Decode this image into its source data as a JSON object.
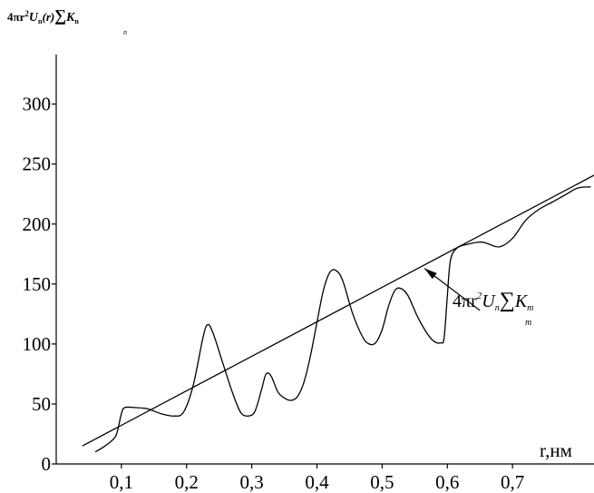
{
  "chart_data": {
    "type": "line",
    "title": "",
    "ylabel": "4πr²U_n(r)∑K_n",
    "ylabel_parts": {
      "lead": "4πr",
      "sup": "2",
      "u": "U",
      "u_sub": "n",
      "arg": "(r)",
      "sum": "∑",
      "sum_sub": "n",
      "k": "K",
      "k_sub": "n"
    },
    "xlabel": "r,нм",
    "xlim": [
      0.0,
      0.8
    ],
    "ylim": [
      0,
      320
    ],
    "x_ticks": [
      0.1,
      0.2,
      0.3,
      0.4,
      0.5,
      0.6,
      0.7
    ],
    "x_tick_labels": [
      "0,1",
      "0,2",
      "0,3",
      "0,4",
      "0,5",
      "0,6",
      "0,7"
    ],
    "y_ticks": [
      0,
      50,
      100,
      150,
      200,
      250,
      300
    ],
    "y_tick_labels": [
      "0",
      "50",
      "100",
      "150",
      "200",
      "250",
      "300"
    ],
    "grid": false,
    "annotation": {
      "parts": {
        "lead": "4πr",
        "sup": "2",
        "u": "U",
        "u_sub": "n",
        "sum": "∑",
        "sum_sub": "m",
        "k": "K",
        "k_sub": "m"
      },
      "points_to": {
        "x": 0.565,
        "y": 163
      },
      "text_at": {
        "x": 0.65,
        "y": 128
      }
    },
    "series": [
      {
        "style": "oscillating",
        "points": [
          [
            0.06,
            10
          ],
          [
            0.075,
            15
          ],
          [
            0.09,
            22
          ],
          [
            0.095,
            30
          ],
          [
            0.1,
            42
          ],
          [
            0.105,
            47
          ],
          [
            0.12,
            47
          ],
          [
            0.14,
            46
          ],
          [
            0.16,
            42
          ],
          [
            0.18,
            40
          ],
          [
            0.195,
            43
          ],
          [
            0.21,
            65
          ],
          [
            0.225,
            105
          ],
          [
            0.232,
            116
          ],
          [
            0.24,
            110
          ],
          [
            0.255,
            85
          ],
          [
            0.27,
            60
          ],
          [
            0.283,
            43
          ],
          [
            0.295,
            40
          ],
          [
            0.305,
            44
          ],
          [
            0.315,
            62
          ],
          [
            0.322,
            75
          ],
          [
            0.33,
            73
          ],
          [
            0.34,
            60
          ],
          [
            0.35,
            55
          ],
          [
            0.36,
            53
          ],
          [
            0.37,
            56
          ],
          [
            0.38,
            68
          ],
          [
            0.39,
            90
          ],
          [
            0.4,
            118
          ],
          [
            0.41,
            145
          ],
          [
            0.42,
            160
          ],
          [
            0.43,
            161
          ],
          [
            0.44,
            152
          ],
          [
            0.455,
            125
          ],
          [
            0.47,
            106
          ],
          [
            0.48,
            100
          ],
          [
            0.49,
            101
          ],
          [
            0.5,
            112
          ],
          [
            0.51,
            132
          ],
          [
            0.52,
            145
          ],
          [
            0.53,
            146
          ],
          [
            0.54,
            140
          ],
          [
            0.555,
            122
          ],
          [
            0.57,
            108
          ],
          [
            0.58,
            102
          ],
          [
            0.59,
            101
          ],
          [
            0.595,
            105
          ],
          [
            0.6,
            140
          ],
          [
            0.605,
            170
          ],
          [
            0.615,
            180
          ],
          [
            0.63,
            183
          ],
          [
            0.65,
            185
          ],
          [
            0.66,
            184
          ],
          [
            0.68,
            181
          ],
          [
            0.7,
            188
          ],
          [
            0.72,
            203
          ],
          [
            0.74,
            212
          ],
          [
            0.76,
            218
          ],
          [
            0.78,
            224
          ],
          [
            0.8,
            230
          ],
          [
            0.82,
            231
          ]
        ]
      },
      {
        "style": "linear",
        "points": [
          [
            0.04,
            15
          ],
          [
            0.84,
            245
          ]
        ]
      }
    ]
  }
}
